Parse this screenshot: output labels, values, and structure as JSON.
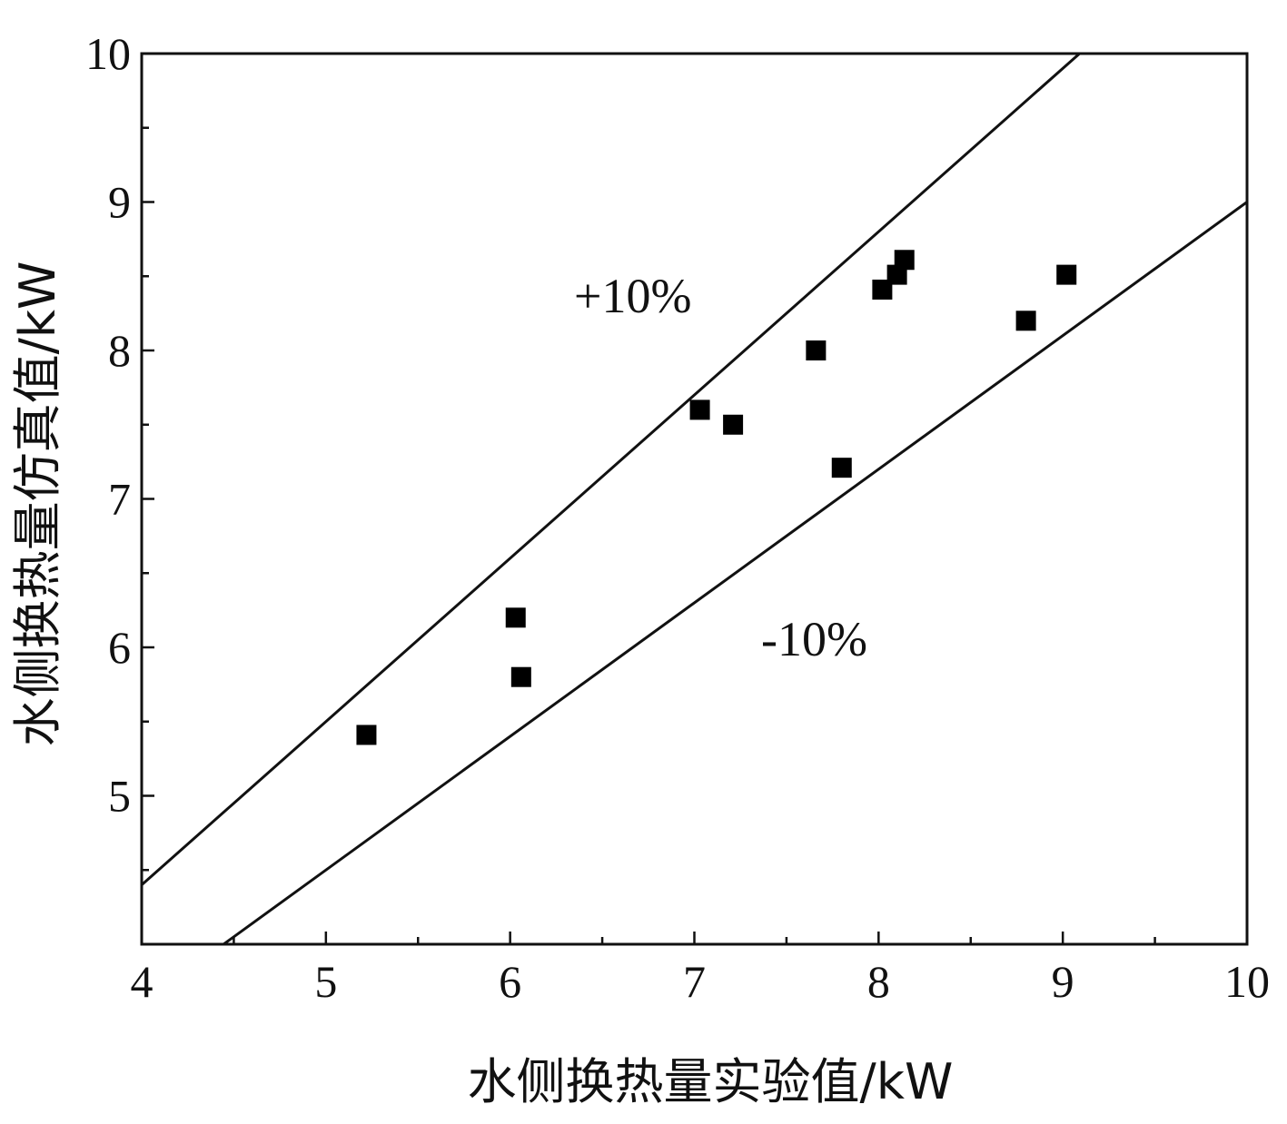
{
  "chart_data": {
    "type": "scatter",
    "xlabel": "水侧换热量实验值/kW",
    "ylabel": "水侧换热量仿真值/kW",
    "xlim": [
      4,
      10
    ],
    "ylim": [
      4,
      10
    ],
    "x_ticks": [
      4,
      5,
      6,
      7,
      8,
      9,
      10
    ],
    "y_ticks": [
      5,
      6,
      7,
      8,
      9,
      10
    ],
    "x_tick_labels": [
      "4",
      "5",
      "6",
      "7",
      "8",
      "9",
      "10"
    ],
    "y_tick_labels": [
      "5",
      "6",
      "7",
      "8",
      "9",
      "10"
    ],
    "grid": false,
    "marker": "square",
    "marker_color": "#000000",
    "points": [
      {
        "x": 5.22,
        "y": 5.41
      },
      {
        "x": 6.03,
        "y": 6.2
      },
      {
        "x": 6.06,
        "y": 5.8
      },
      {
        "x": 7.03,
        "y": 7.6
      },
      {
        "x": 7.21,
        "y": 7.5
      },
      {
        "x": 7.66,
        "y": 8.0
      },
      {
        "x": 7.8,
        "y": 7.21
      },
      {
        "x": 8.02,
        "y": 8.41
      },
      {
        "x": 8.1,
        "y": 8.51
      },
      {
        "x": 8.14,
        "y": 8.61
      },
      {
        "x": 8.8,
        "y": 8.2
      },
      {
        "x": 9.02,
        "y": 8.51
      }
    ],
    "reference_lines": [
      {
        "label": "+10%",
        "slope": 1.1
      },
      {
        "label": "-10%",
        "slope": 0.9
      }
    ]
  }
}
